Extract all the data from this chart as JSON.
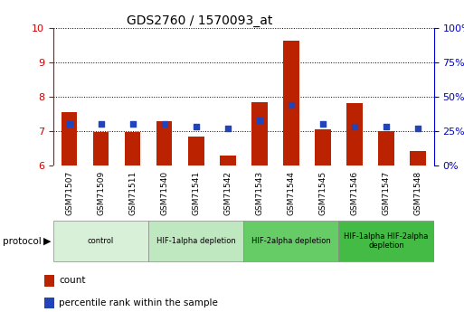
{
  "title": "GDS2760 / 1570093_at",
  "samples": [
    "GSM71507",
    "GSM71509",
    "GSM71511",
    "GSM71540",
    "GSM71541",
    "GSM71542",
    "GSM71543",
    "GSM71544",
    "GSM71545",
    "GSM71546",
    "GSM71547",
    "GSM71548"
  ],
  "count_values": [
    7.55,
    6.97,
    6.97,
    7.28,
    6.83,
    6.28,
    7.85,
    9.62,
    7.06,
    7.82,
    7.0,
    6.42
  ],
  "percentile_values": [
    30,
    30,
    30,
    30,
    28,
    27,
    33,
    44,
    30,
    28,
    28,
    27
  ],
  "ylim_left": [
    6,
    10
  ],
  "ylim_right": [
    0,
    100
  ],
  "yticks_left": [
    6,
    7,
    8,
    9,
    10
  ],
  "yticks_right": [
    0,
    25,
    50,
    75,
    100
  ],
  "count_color": "#bb2200",
  "percentile_color": "#2244bb",
  "bar_width": 0.5,
  "groups": [
    {
      "label": "control",
      "start": 0,
      "end": 2,
      "color": "#d8f0d8"
    },
    {
      "label": "HIF-1alpha depletion",
      "start": 3,
      "end": 5,
      "color": "#c0e8c0"
    },
    {
      "label": "HIF-2alpha depletion",
      "start": 6,
      "end": 8,
      "color": "#66cc66"
    },
    {
      "label": "HIF-1alpha HIF-2alpha\ndepletion",
      "start": 9,
      "end": 11,
      "color": "#44bb44"
    }
  ],
  "left_axis_color": "#cc0000",
  "right_axis_color": "#0000cc",
  "xticklabel_bg": "#cccccc",
  "bg_color": "#ffffff",
  "title_fontsize": 10,
  "legend_items": [
    {
      "label": "count",
      "color": "#bb2200"
    },
    {
      "label": "percentile rank within the sample",
      "color": "#2244bb"
    }
  ]
}
